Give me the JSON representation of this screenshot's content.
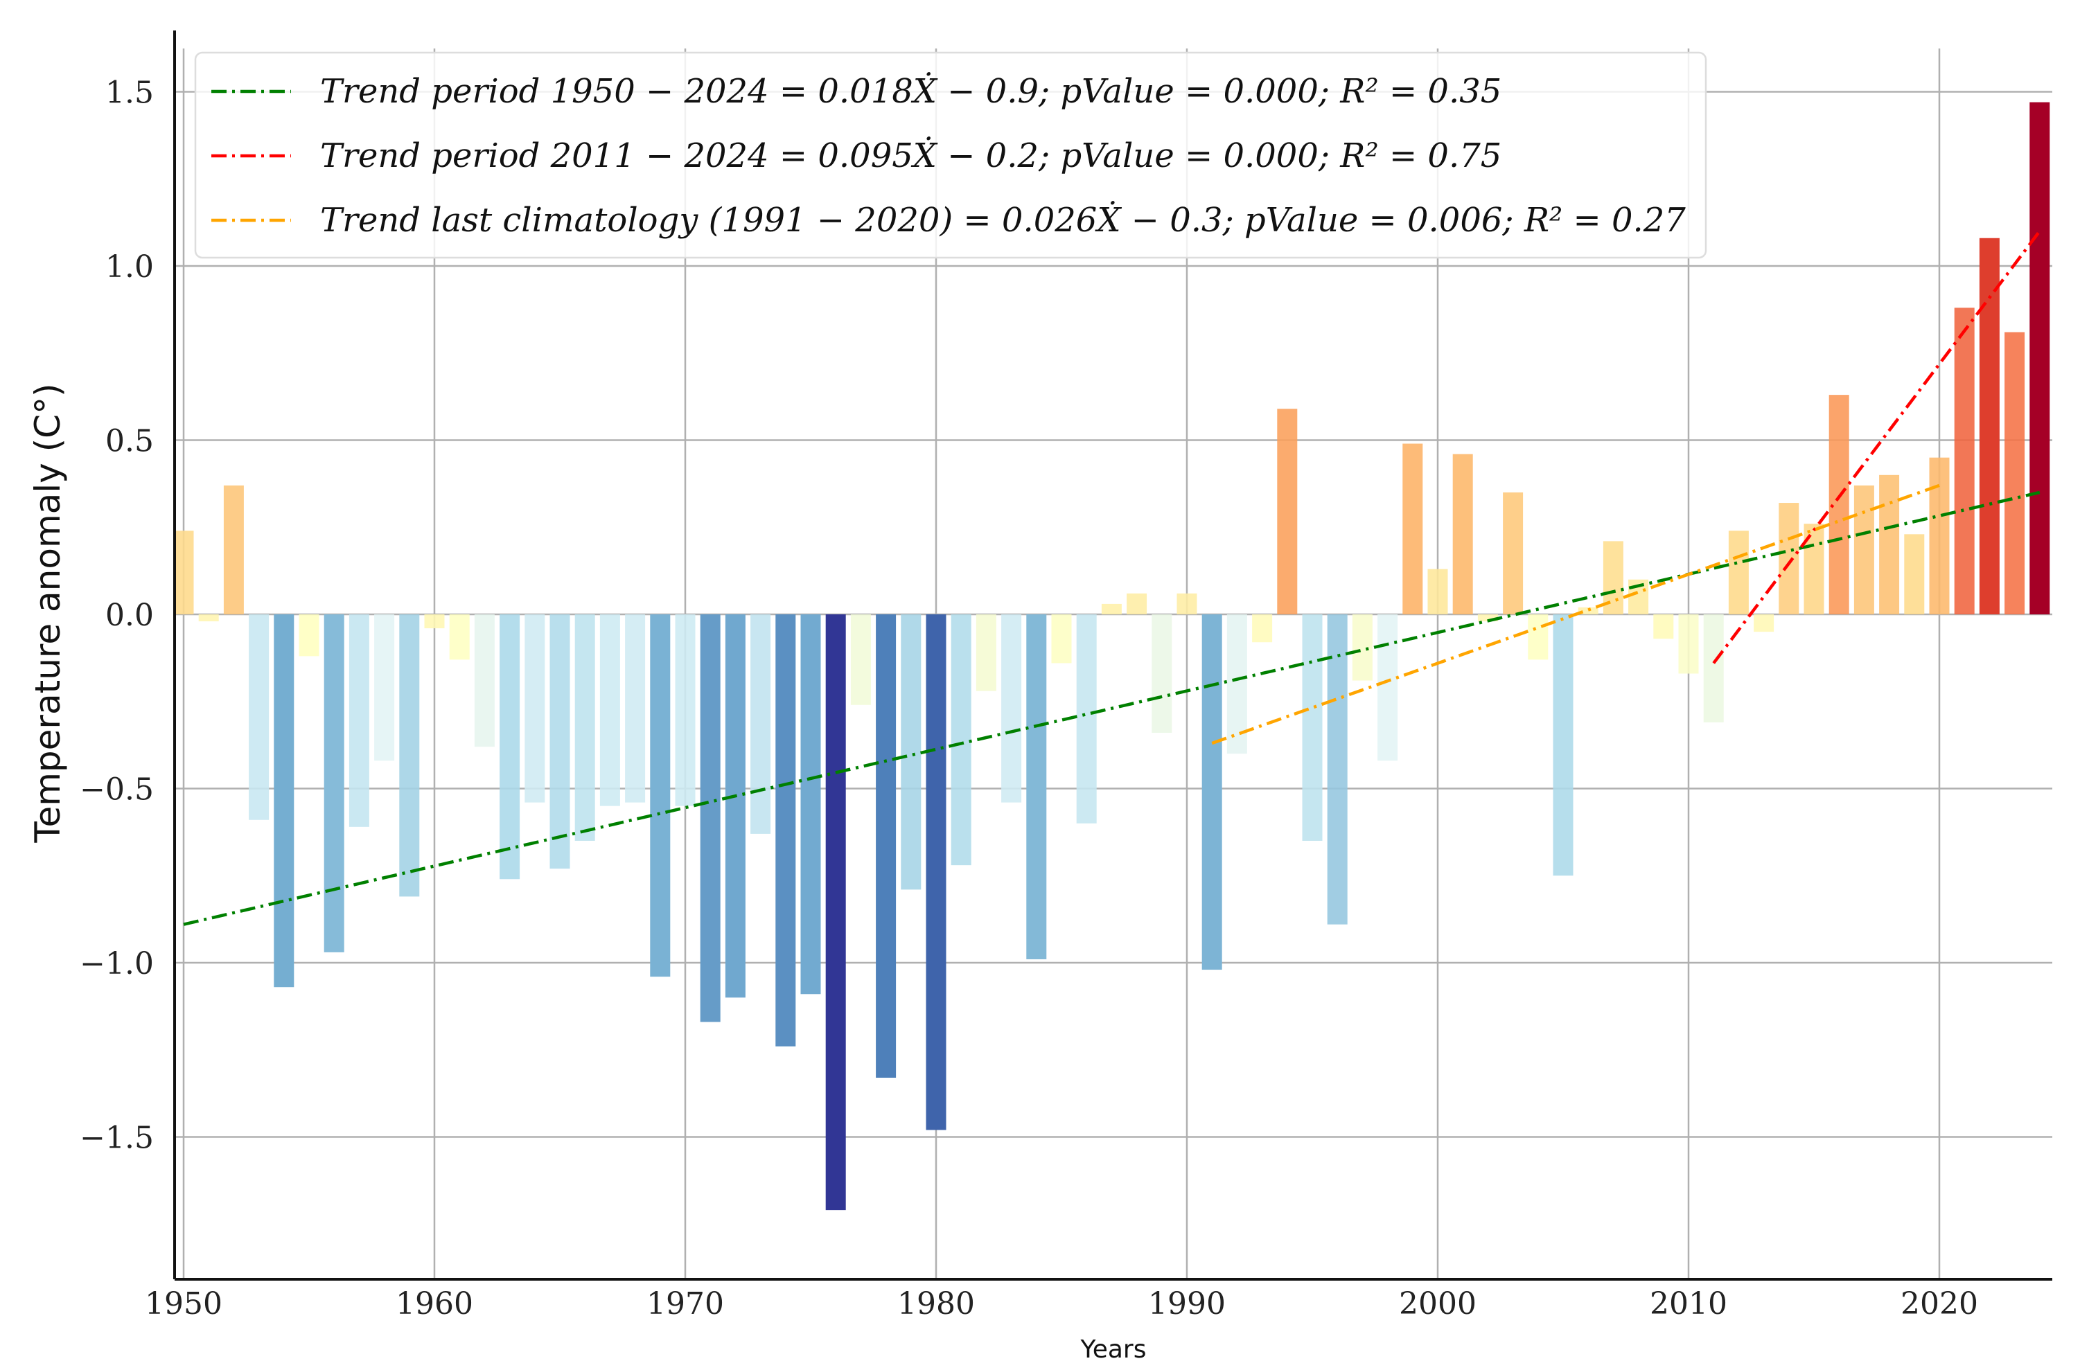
{
  "chart_data": {
    "type": "bar",
    "xlabel": "Years",
    "ylabel": "Temperature anomaly (C°)",
    "xlim": [
      1949.6,
      2024.5
    ],
    "ylim": [
      -1.9,
      1.65
    ],
    "xticks": [
      1950,
      1960,
      1970,
      1980,
      1990,
      2000,
      2010,
      2020
    ],
    "xtick_labels": [
      "1950",
      "1960",
      "1970",
      "1980",
      "1990",
      "2000",
      "2010",
      "2020"
    ],
    "yticks": [
      1.5,
      1.0,
      0.5,
      0.0,
      -0.5,
      -1.0,
      -1.5
    ],
    "ytick_labels": [
      "1.5",
      "1.0",
      "0.5",
      "0.0",
      "−0.5",
      "−1.0",
      "−1.5"
    ],
    "grid": true,
    "legend_position": "top-left",
    "color_scale": [
      "#313695",
      "#4575b4",
      "#74add1",
      "#abd9e9",
      "#e0f3f8",
      "#ffffbf",
      "#fee090",
      "#fdae61",
      "#f46d43",
      "#d73027",
      "#a50026"
    ],
    "years": [
      1950,
      1951,
      1952,
      1953,
      1954,
      1955,
      1956,
      1957,
      1958,
      1959,
      1960,
      1961,
      1962,
      1963,
      1964,
      1965,
      1966,
      1967,
      1968,
      1969,
      1970,
      1971,
      1972,
      1973,
      1974,
      1975,
      1976,
      1977,
      1978,
      1979,
      1980,
      1981,
      1982,
      1983,
      1984,
      1985,
      1986,
      1987,
      1988,
      1989,
      1990,
      1991,
      1992,
      1993,
      1994,
      1995,
      1996,
      1997,
      1998,
      1999,
      2000,
      2001,
      2002,
      2003,
      2004,
      2005,
      2006,
      2007,
      2008,
      2009,
      2010,
      2011,
      2012,
      2013,
      2014,
      2015,
      2016,
      2017,
      2018,
      2019,
      2020,
      2021,
      2022,
      2023,
      2024
    ],
    "values": [
      0.24,
      -0.02,
      0.37,
      -0.59,
      -1.07,
      -0.12,
      -0.97,
      -0.61,
      -0.42,
      -0.81,
      -0.04,
      -0.13,
      -0.38,
      -0.76,
      -0.54,
      -0.73,
      -0.65,
      -0.55,
      -0.54,
      -1.04,
      -0.55,
      -1.17,
      -1.1,
      -0.63,
      -1.24,
      -1.09,
      -1.71,
      -0.26,
      -1.33,
      -0.79,
      -1.48,
      -0.72,
      -0.22,
      -0.54,
      -0.99,
      -0.14,
      -0.6,
      0.03,
      0.06,
      -0.34,
      0.06,
      -1.02,
      -0.4,
      -0.08,
      0.59,
      -0.65,
      -0.89,
      -0.19,
      -0.42,
      0.49,
      0.13,
      0.46,
      -0.02,
      0.35,
      -0.13,
      -0.75,
      0.02,
      0.21,
      0.1,
      -0.07,
      -0.17,
      -0.31,
      0.24,
      -0.05,
      0.32,
      0.26,
      0.63,
      0.37,
      0.4,
      0.23,
      0.45,
      0.88,
      1.08,
      0.81,
      1.47
    ],
    "series": [
      {
        "name": "Trend period 1950 − 2024 = 0.018Ẋ − 0.9; pValue = 0.000; R² = 0.35",
        "color": "#008000",
        "x": [
          1950,
          2024
        ],
        "y": [
          -0.89,
          0.35
        ]
      },
      {
        "name": "Trend period 2011 − 2024 = 0.095Ẋ − 0.2; pValue = 0.000; R² = 0.75",
        "color": "#ff0000",
        "x": [
          2011,
          2024
        ],
        "y": [
          -0.14,
          1.1
        ]
      },
      {
        "name": "Trend last climatology (1991 − 2020) = 0.026Ẋ − 0.3; pValue = 0.006; R² = 0.27",
        "color": "#ffa500",
        "x": [
          1991,
          2020
        ],
        "y": [
          -0.37,
          0.37
        ]
      }
    ]
  }
}
